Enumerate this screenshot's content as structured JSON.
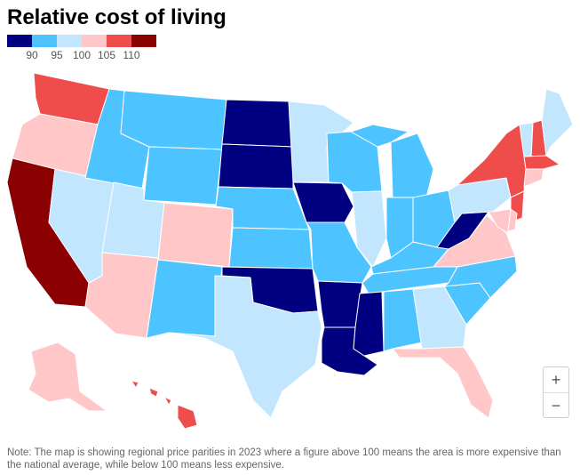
{
  "title": "Relative cost of living",
  "legend": {
    "ticks": [
      "90",
      "95",
      "100",
      "105",
      "110"
    ],
    "colors": [
      "#000080",
      "#4dc3ff",
      "#c3e6ff",
      "#ffc7c7",
      "#ef4c4c",
      "#8b0000"
    ]
  },
  "zoom": {
    "in_label": "+",
    "out_label": "−"
  },
  "note": "Note: The map is showing regional price parities in 2023 where a figure above 100 means the area is more expensive than the national average, while below 100 means less expensive.",
  "states": [
    {
      "abbr": "WA",
      "bin": 4
    },
    {
      "abbr": "OR",
      "bin": 3
    },
    {
      "abbr": "CA",
      "bin": 5
    },
    {
      "abbr": "NV",
      "bin": 2
    },
    {
      "abbr": "ID",
      "bin": 1
    },
    {
      "abbr": "MT",
      "bin": 1
    },
    {
      "abbr": "WY",
      "bin": 1
    },
    {
      "abbr": "UT",
      "bin": 2
    },
    {
      "abbr": "AZ",
      "bin": 3
    },
    {
      "abbr": "CO",
      "bin": 3
    },
    {
      "abbr": "NM",
      "bin": 1
    },
    {
      "abbr": "ND",
      "bin": 0
    },
    {
      "abbr": "SD",
      "bin": 0
    },
    {
      "abbr": "NE",
      "bin": 1
    },
    {
      "abbr": "KS",
      "bin": 1
    },
    {
      "abbr": "OK",
      "bin": 0
    },
    {
      "abbr": "TX",
      "bin": 2
    },
    {
      "abbr": "MN",
      "bin": 2
    },
    {
      "abbr": "IA",
      "bin": 0
    },
    {
      "abbr": "MO",
      "bin": 1
    },
    {
      "abbr": "AR",
      "bin": 0
    },
    {
      "abbr": "LA",
      "bin": 0
    },
    {
      "abbr": "WI",
      "bin": 1
    },
    {
      "abbr": "IL",
      "bin": 2
    },
    {
      "abbr": "MI",
      "bin": 1
    },
    {
      "abbr": "IN",
      "bin": 1
    },
    {
      "abbr": "OH",
      "bin": 1
    },
    {
      "abbr": "KY",
      "bin": 1
    },
    {
      "abbr": "TN",
      "bin": 1
    },
    {
      "abbr": "MS",
      "bin": 0
    },
    {
      "abbr": "AL",
      "bin": 1
    },
    {
      "abbr": "GA",
      "bin": 2
    },
    {
      "abbr": "FL",
      "bin": 3
    },
    {
      "abbr": "SC",
      "bin": 1
    },
    {
      "abbr": "NC",
      "bin": 1
    },
    {
      "abbr": "VA",
      "bin": 3
    },
    {
      "abbr": "WV",
      "bin": 0
    },
    {
      "abbr": "PA",
      "bin": 2
    },
    {
      "abbr": "NY",
      "bin": 4
    },
    {
      "abbr": "VT",
      "bin": 2
    },
    {
      "abbr": "NH",
      "bin": 4
    },
    {
      "abbr": "ME",
      "bin": 2
    },
    {
      "abbr": "MA",
      "bin": 4
    },
    {
      "abbr": "CT",
      "bin": 3
    },
    {
      "abbr": "NJ",
      "bin": 4
    },
    {
      "abbr": "MD",
      "bin": 3
    },
    {
      "abbr": "DE",
      "bin": 3
    },
    {
      "abbr": "AK",
      "bin": 3
    },
    {
      "abbr": "HI",
      "bin": 4
    }
  ]
}
